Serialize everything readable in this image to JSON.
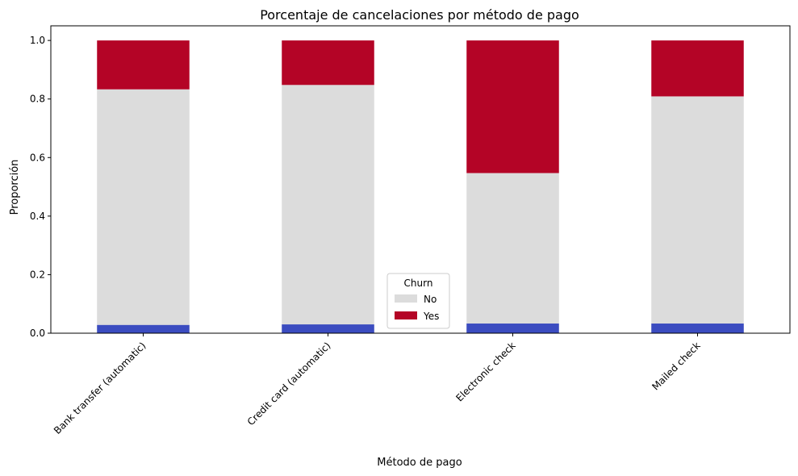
{
  "chart_data": {
    "type": "bar",
    "stacked": true,
    "title": "Porcentaje de cancelaciones por método de pago",
    "xlabel": "Método de pago",
    "ylabel": "Proporción",
    "ylim": [
      0,
      1.05
    ],
    "yticks": [
      0.0,
      0.2,
      0.4,
      0.6,
      0.8,
      1.0
    ],
    "ytick_labels": [
      "0.0",
      "0.2",
      "0.4",
      "0.6",
      "0.8",
      "1.0"
    ],
    "categories": [
      "Bank transfer (automatic)",
      "Credit card (automatic)",
      "Electronic check",
      "Mailed check"
    ],
    "series": [
      {
        "name": "No",
        "values": [
          0.833,
          0.848,
          0.547,
          0.809
        ],
        "color": "#dcdcdc"
      },
      {
        "name": "Yes",
        "values": [
          0.167,
          0.152,
          0.453,
          0.191
        ],
        "color": "#b40426"
      }
    ],
    "bottom_segment": {
      "values": [
        0.028,
        0.03,
        0.033,
        0.033
      ],
      "color": "#3b4cc0"
    },
    "grid": false,
    "legend": {
      "title": "Churn",
      "position": "lower-center"
    }
  }
}
